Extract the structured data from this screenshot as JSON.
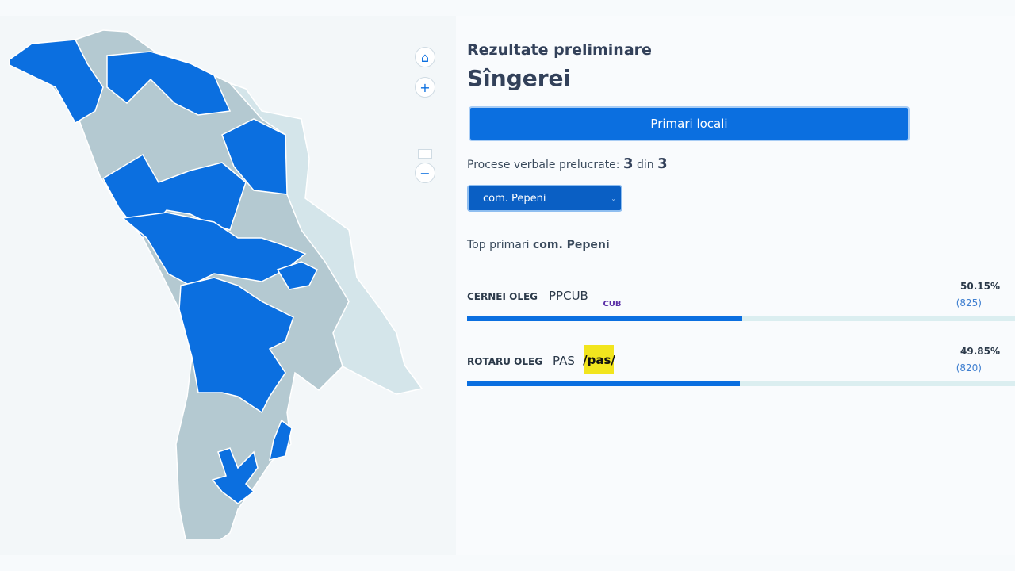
{
  "header": {
    "subtitle": "Rezultate preliminare",
    "title": "Sîngerei"
  },
  "tab": "Primari locali",
  "protocols": {
    "label": "Procese verbale prelucrate:",
    "processed": 3,
    "separator": "din",
    "total": 3
  },
  "select": "com. Pepeni",
  "top_label": "Top primari",
  "candidates": [
    {
      "name": "CERNEI OLEG",
      "party": "PPCUB",
      "logo": "CUB",
      "percent": {
        "value": 50.15,
        "label": "50.15%"
      },
      "votes": "(825)"
    },
    {
      "name": "ROTARU OLEG",
      "party": "PAS",
      "logo": "/pas/",
      "percent": {
        "value": 49.85,
        "label": "49.85%"
      },
      "votes": "(820)"
    }
  ]
}
